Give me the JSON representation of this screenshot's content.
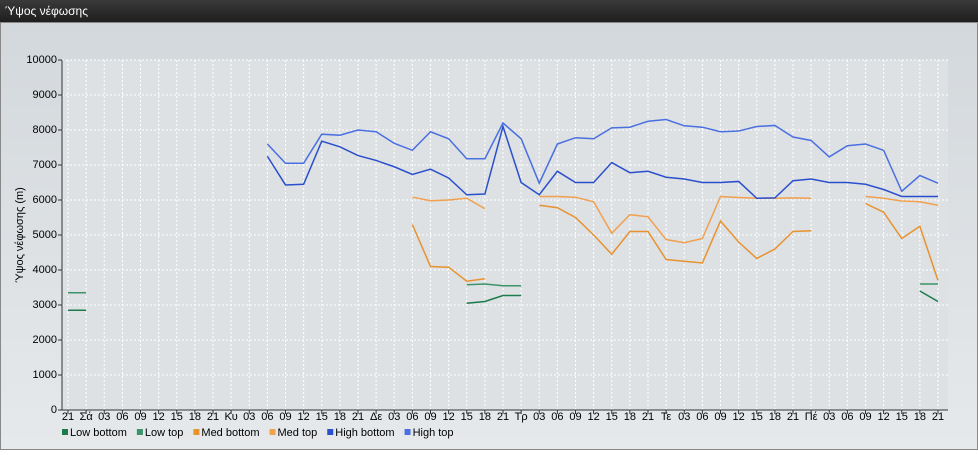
{
  "window_title": "Ύψος νέφωσης",
  "chart_data": {
    "type": "line",
    "y_label": "Ύψος νέφωσης (m)",
    "categories": [
      "21",
      "Σά",
      "03",
      "06",
      "09",
      "12",
      "15",
      "18",
      "21",
      "Κυ",
      "03",
      "06",
      "09",
      "12",
      "15",
      "18",
      "21",
      "Δε",
      "03",
      "06",
      "09",
      "12",
      "15",
      "18",
      "21",
      "Τρ",
      "03",
      "06",
      "09",
      "12",
      "15",
      "18",
      "21",
      "Τε",
      "03",
      "06",
      "09",
      "12",
      "15",
      "18",
      "21",
      "Πέ",
      "03",
      "06",
      "09",
      "12",
      "15",
      "18",
      "21"
    ],
    "ylim": [
      0,
      10000
    ],
    "yticks": [
      0,
      1000,
      2000,
      3000,
      4000,
      5000,
      6000,
      7000,
      8000,
      9000,
      10000
    ],
    "grid": true,
    "series": [
      {
        "name": "Low bottom",
        "color": "#1d7a4c",
        "values": [
          2850,
          2850,
          null,
          null,
          null,
          null,
          null,
          null,
          null,
          null,
          null,
          null,
          null,
          null,
          null,
          null,
          null,
          null,
          null,
          null,
          null,
          null,
          3050,
          3100,
          3270,
          3270,
          null,
          null,
          null,
          null,
          null,
          null,
          null,
          null,
          null,
          null,
          null,
          null,
          null,
          null,
          null,
          null,
          null,
          null,
          null,
          null,
          null,
          3400,
          3100
        ]
      },
      {
        "name": "Low top",
        "color": "#3b9468",
        "values": [
          3350,
          3350,
          null,
          null,
          null,
          null,
          null,
          null,
          null,
          null,
          null,
          null,
          null,
          null,
          null,
          null,
          null,
          null,
          null,
          null,
          null,
          null,
          3580,
          3600,
          3550,
          3550,
          null,
          null,
          null,
          null,
          null,
          null,
          null,
          null,
          null,
          null,
          null,
          null,
          null,
          null,
          null,
          null,
          null,
          null,
          null,
          null,
          null,
          3600,
          3600
        ]
      },
      {
        "name": "Med bottom",
        "color": "#e8922e",
        "values": [
          null,
          null,
          null,
          null,
          null,
          null,
          null,
          null,
          null,
          null,
          null,
          null,
          null,
          null,
          null,
          null,
          null,
          null,
          null,
          5300,
          4100,
          4080,
          3680,
          3750,
          null,
          null,
          5850,
          5780,
          5500,
          5000,
          4450,
          5100,
          5100,
          4300,
          4250,
          4200,
          5400,
          4800,
          4330,
          4600,
          5100,
          5120,
          null,
          null,
          5900,
          5650,
          4900,
          5250,
          3700
        ]
      },
      {
        "name": "Med top",
        "color": "#f0a04e",
        "values": [
          null,
          null,
          null,
          null,
          null,
          null,
          null,
          null,
          null,
          null,
          null,
          null,
          null,
          null,
          null,
          null,
          null,
          null,
          null,
          6080,
          5980,
          6000,
          6050,
          5750,
          null,
          null,
          6100,
          6100,
          6080,
          5950,
          5050,
          5580,
          5520,
          4870,
          4780,
          4900,
          6100,
          6070,
          6050,
          6050,
          6060,
          6050,
          null,
          null,
          6100,
          6050,
          5970,
          5950,
          5850
        ]
      },
      {
        "name": "High bottom",
        "color": "#2a4fcc",
        "values": [
          null,
          null,
          null,
          null,
          null,
          null,
          null,
          null,
          null,
          null,
          null,
          7250,
          6430,
          6450,
          7680,
          7520,
          7270,
          7130,
          6950,
          6730,
          6880,
          6630,
          6150,
          6170,
          8100,
          6500,
          6150,
          6820,
          6500,
          6500,
          7070,
          6780,
          6820,
          6650,
          6600,
          6500,
          6500,
          6530,
          6050,
          6060,
          6550,
          6600,
          6500,
          6500,
          6450,
          6300,
          6100,
          6100,
          6100
        ]
      },
      {
        "name": "High top",
        "color": "#4a6fe0",
        "values": [
          null,
          null,
          null,
          null,
          null,
          null,
          null,
          null,
          null,
          null,
          null,
          7600,
          7050,
          7050,
          7880,
          7850,
          8000,
          7950,
          7620,
          7420,
          7950,
          7750,
          7180,
          7180,
          8200,
          7750,
          6480,
          7600,
          7780,
          7750,
          8060,
          8080,
          8250,
          8300,
          8120,
          8080,
          7950,
          7970,
          8100,
          8130,
          7800,
          7700,
          7230,
          7550,
          7600,
          7420,
          6250,
          6700,
          6480
        ]
      }
    ]
  }
}
